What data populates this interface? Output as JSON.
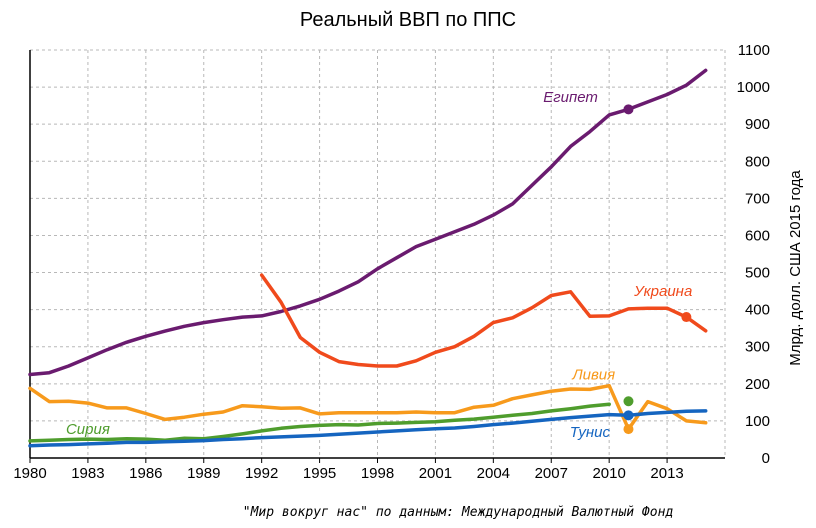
{
  "chart_data": {
    "type": "line",
    "title": "Реальный ВВП по ППС",
    "ylabel": "Млрд. долл. США 2015 года",
    "source": "\"Мир вокруг нас\" по данным: Международный Валютный Фонд",
    "xlim": [
      1980,
      2016
    ],
    "ylim": [
      0,
      1100
    ],
    "x_ticks": [
      1980,
      1983,
      1986,
      1989,
      1992,
      1995,
      1998,
      2001,
      2004,
      2007,
      2010,
      2013
    ],
    "y_ticks": [
      0,
      100,
      200,
      300,
      400,
      500,
      600,
      700,
      800,
      900,
      1000,
      1100
    ],
    "y_axis_side": "right",
    "grid": true,
    "series": [
      {
        "name": "Египет",
        "color": "#6a1b6f",
        "x": [
          1980,
          1981,
          1982,
          1983,
          1984,
          1985,
          1986,
          1987,
          1988,
          1989,
          1990,
          1991,
          1992,
          1993,
          1994,
          1995,
          1996,
          1997,
          1998,
          1999,
          2000,
          2001,
          2002,
          2003,
          2004,
          2005,
          2006,
          2007,
          2008,
          2009,
          2010,
          2011,
          2012,
          2013,
          2014,
          2015
        ],
        "values": [
          225,
          230,
          248,
          270,
          292,
          312,
          328,
          342,
          355,
          365,
          373,
          380,
          383,
          395,
          410,
          428,
          450,
          475,
          510,
          540,
          570,
          590,
          610,
          630,
          655,
          685,
          735,
          785,
          840,
          880,
          925,
          940,
          960,
          980,
          1005,
          1045
        ],
        "markers": [
          {
            "x": 2011,
            "y": 940
          }
        ]
      },
      {
        "name": "Украина",
        "color": "#f04a1c",
        "x": [
          1992,
          1993,
          1994,
          1995,
          1996,
          1997,
          1998,
          1999,
          2000,
          2001,
          2002,
          2003,
          2004,
          2005,
          2006,
          2007,
          2008,
          2009,
          2010,
          2011,
          2012,
          2013,
          2014,
          2015
        ],
        "values": [
          493,
          420,
          325,
          285,
          260,
          252,
          248,
          248,
          262,
          285,
          300,
          328,
          365,
          378,
          405,
          438,
          448,
          382,
          383,
          402,
          404,
          404,
          380,
          343
        ],
        "markers": [
          {
            "x": 2014,
            "y": 380
          }
        ]
      },
      {
        "name": "Ливия",
        "color": "#f79a1c",
        "x": [
          1980,
          1981,
          1982,
          1983,
          1984,
          1985,
          1986,
          1987,
          1988,
          1989,
          1990,
          1991,
          1992,
          1993,
          1994,
          1995,
          1996,
          1997,
          1998,
          1999,
          2000,
          2001,
          2002,
          2003,
          2004,
          2005,
          2006,
          2007,
          2008,
          2009,
          2010,
          2011,
          2012,
          2013,
          2014,
          2015
        ],
        "values": [
          188,
          152,
          153,
          148,
          135,
          135,
          120,
          104,
          110,
          118,
          124,
          141,
          138,
          134,
          135,
          119,
          122,
          122,
          122,
          122,
          124,
          122,
          122,
          137,
          142,
          160,
          170,
          180,
          186,
          185,
          195,
          78,
          152,
          133,
          100,
          95
        ],
        "markers": [
          {
            "x": 2011,
            "y": 78
          }
        ]
      },
      {
        "name": "Сирия",
        "color": "#4f9d2d",
        "x": [
          1980,
          1981,
          1982,
          1983,
          1984,
          1985,
          1986,
          1987,
          1988,
          1989,
          1990,
          1991,
          1992,
          1993,
          1994,
          1995,
          1996,
          1997,
          1998,
          1999,
          2000,
          2001,
          2002,
          2003,
          2004,
          2005,
          2006,
          2007,
          2008,
          2009,
          2010
        ],
        "values": [
          46,
          48,
          50,
          51,
          50,
          52,
          51,
          48,
          53,
          52,
          58,
          65,
          73,
          80,
          85,
          88,
          90,
          89,
          93,
          94,
          96,
          98,
          102,
          105,
          110,
          115,
          120,
          127,
          133,
          140,
          145
        ],
        "markers": [
          {
            "x": 2011,
            "y": 153
          }
        ]
      },
      {
        "name": "Тунис",
        "color": "#1565c0",
        "x": [
          1980,
          1981,
          1982,
          1983,
          1984,
          1985,
          1986,
          1987,
          1988,
          1989,
          1990,
          1991,
          1992,
          1993,
          1994,
          1995,
          1996,
          1997,
          1998,
          1999,
          2000,
          2001,
          2002,
          2003,
          2004,
          2005,
          2006,
          2007,
          2008,
          2009,
          2010,
          2011,
          2012,
          2013,
          2014,
          2015
        ],
        "values": [
          33,
          35,
          36,
          38,
          40,
          42,
          42,
          44,
          45,
          47,
          50,
          52,
          55,
          57,
          59,
          61,
          64,
          67,
          70,
          73,
          76,
          79,
          81,
          85,
          90,
          94,
          99,
          104,
          109,
          113,
          117,
          115,
          120,
          123,
          126,
          127
        ],
        "markers": [
          {
            "x": 2011,
            "y": 115
          }
        ]
      }
    ]
  }
}
